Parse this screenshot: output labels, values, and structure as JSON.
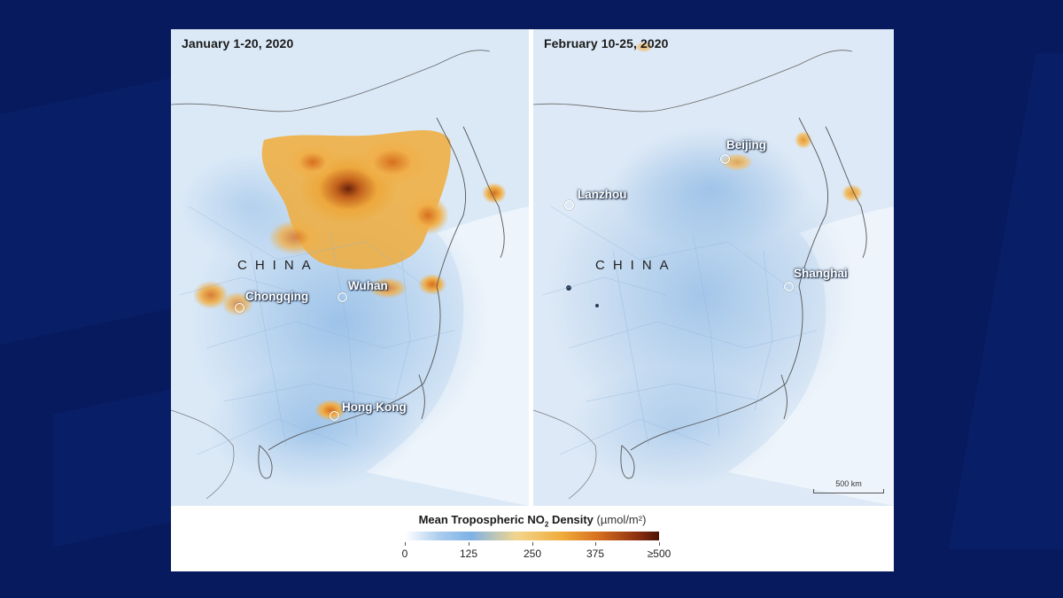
{
  "left_panel": {
    "title": "January 1-20, 2020",
    "country_label": "CHINA",
    "cities": [
      {
        "name": "Chongqing"
      },
      {
        "name": "Wuhan"
      },
      {
        "name": "Hong Kong"
      }
    ]
  },
  "right_panel": {
    "title": "February 10-25, 2020",
    "country_label": "CHINA",
    "cities": [
      {
        "name": "Beijing"
      },
      {
        "name": "Lanzhou"
      },
      {
        "name": "Shanghai"
      }
    ],
    "scale_bar": "500 km"
  },
  "legend": {
    "title_main": "Mean Tropospheric NO",
    "title_sub": "2",
    "title_after": " Density",
    "unit": "(µmol/m²)",
    "ticks": [
      "0",
      "125",
      "250",
      "375",
      "≥500"
    ]
  },
  "colors": {
    "background": "#071a5e",
    "map_base": "#dbe9f7",
    "low": "#7eb2e6",
    "mid": "#f0ab3a",
    "high": "#4a1505"
  }
}
